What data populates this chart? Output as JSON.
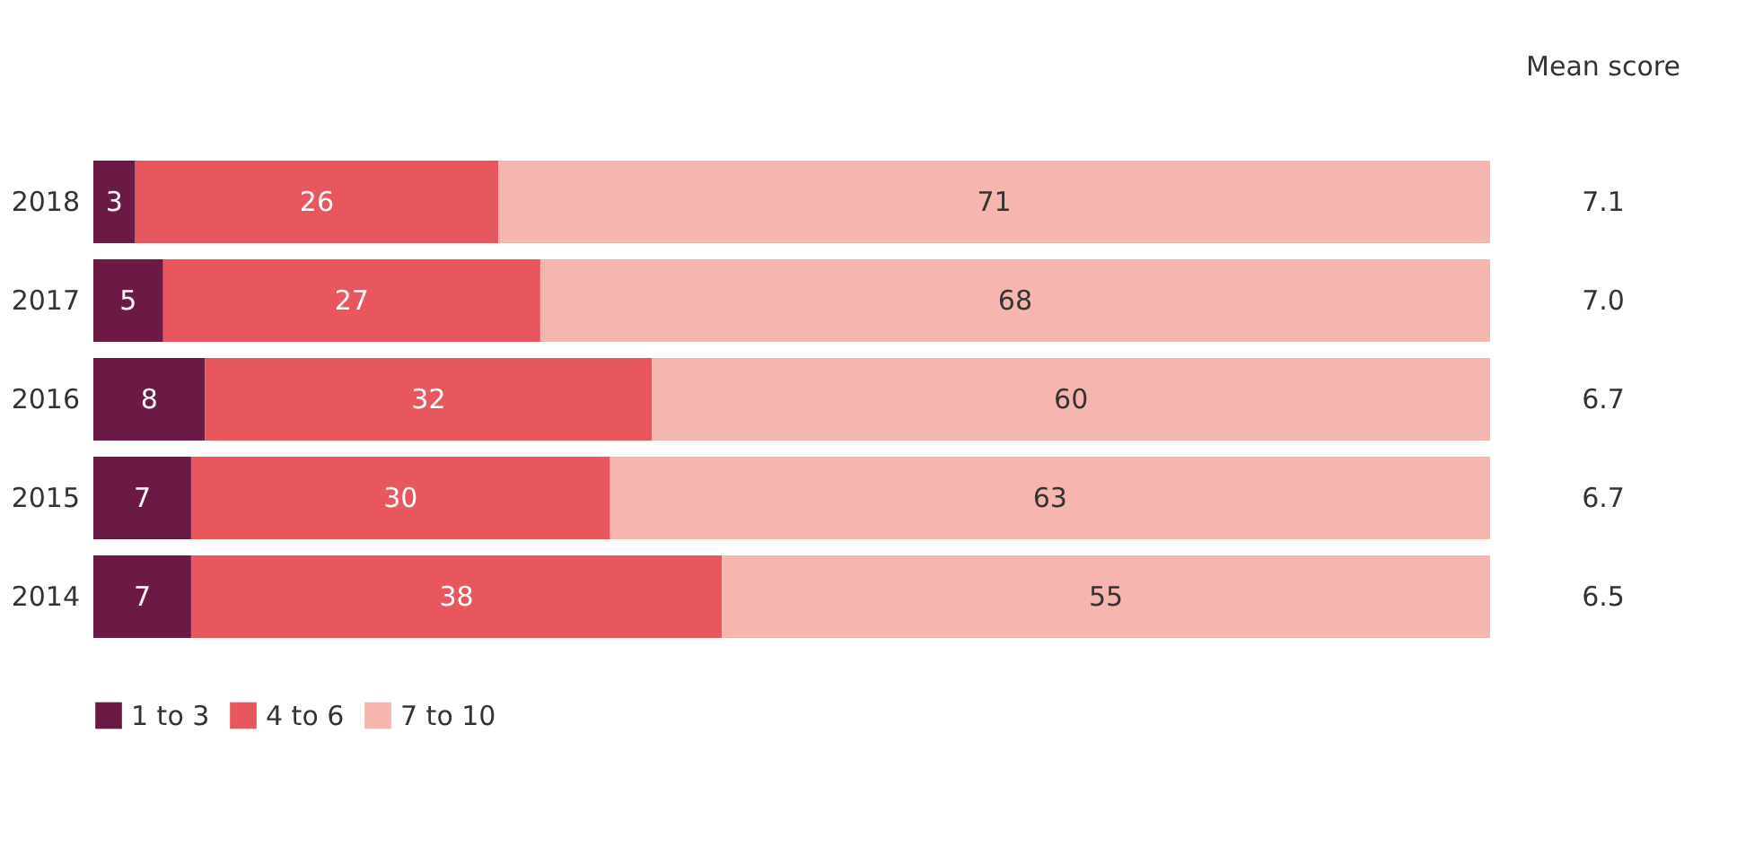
{
  "chart_data": {
    "type": "bar",
    "orientation": "horizontal",
    "stacked": true,
    "data_labels": true,
    "legend": "bottom",
    "grid": false,
    "categories": [
      "2018",
      "2017",
      "2016",
      "2015",
      "2014"
    ],
    "series": [
      {
        "name": "1 to 3",
        "color": "#6b1a45",
        "values": [
          3,
          5,
          8,
          7,
          7
        ]
      },
      {
        "name": "4 to 6",
        "color": "#e9575e",
        "values": [
          26,
          27,
          32,
          30,
          38
        ]
      },
      {
        "name": "7 to 10",
        "color": "#f6b5ae",
        "values": [
          71,
          68,
          60,
          63,
          55
        ]
      }
    ],
    "annotations": [
      "Mean score",
      "7.1",
      "7.0",
      "6.7",
      "6.7",
      "6.5"
    ]
  }
}
